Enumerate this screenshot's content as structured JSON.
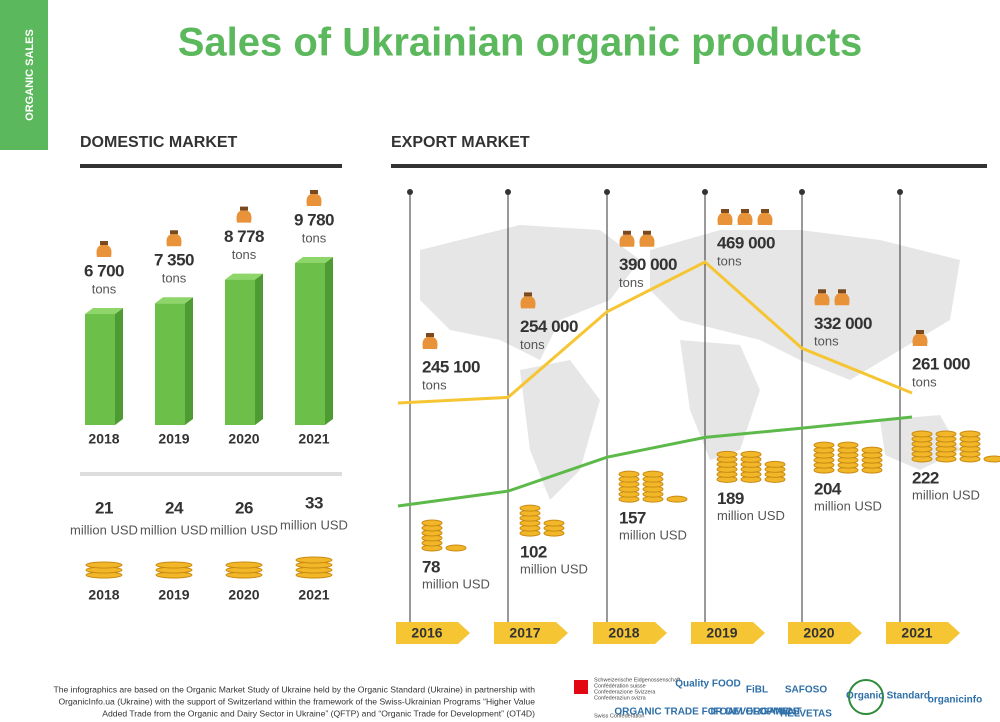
{
  "side_tab": "ORGANIC SALES",
  "title": "Sales of Ukrainian organic products",
  "chart_data": [
    {
      "type": "bar",
      "title": "DOMESTIC MARKET",
      "unit": "tons",
      "categories": [
        "2018",
        "2019",
        "2020",
        "2021"
      ],
      "values": [
        6700,
        7350,
        8778,
        9780
      ],
      "value_labels": [
        "6 700",
        "7 350",
        "8 778",
        "9 780"
      ],
      "color": "#6cc04a"
    },
    {
      "type": "coins",
      "unit": "million USD",
      "categories": [
        "2018",
        "2019",
        "2020",
        "2021"
      ],
      "values": [
        21,
        24,
        26,
        33
      ],
      "color": "#f2b728"
    },
    {
      "type": "line",
      "title": "EXPORT MARKET",
      "categories": [
        "2016",
        "2017",
        "2018",
        "2019",
        "2020",
        "2021"
      ],
      "series": [
        {
          "unit": "tons",
          "color": "#f6c533",
          "values": [
            245100,
            254000,
            390000,
            469000,
            332000,
            261000
          ],
          "value_labels": [
            "245 100",
            "254 000",
            "390 000",
            "469 000",
            "332 000",
            "261 000"
          ]
        },
        {
          "unit": "million USD",
          "color": "#5dba4a",
          "values": [
            78,
            102,
            157,
            189,
            204,
            222
          ]
        }
      ]
    }
  ],
  "footer": {
    "text": [
      "The infographics are based on the Organic Market Study of Ukraine held by the Organic Standard (Ukraine) in partnership with",
      "OrganicInfo.ua (Ukraine) with the support of Switzerland within the framework of the Swiss-Ukrainian Programs “Higher Value",
      "Added Trade from the Organic and Dairy Sector in Ukraine” (QFTP) and “Organic Trade for Development” (OT4D)"
    ],
    "swiss": [
      "Schweizerische Eidgenossenschaft",
      "Confédération suisse",
      "Confederazione Svizzera",
      "Confederaziun svizra",
      "Swiss Confederation"
    ],
    "logos": [
      "Quality FOOD",
      "FiBL",
      "SAFOSO",
      "ORGANIC TRADE FOR DEVELOPMENT",
      "IFOAM ORGANICS",
      "HELVETAS",
      "Organic Standard",
      "organicinfo"
    ]
  }
}
